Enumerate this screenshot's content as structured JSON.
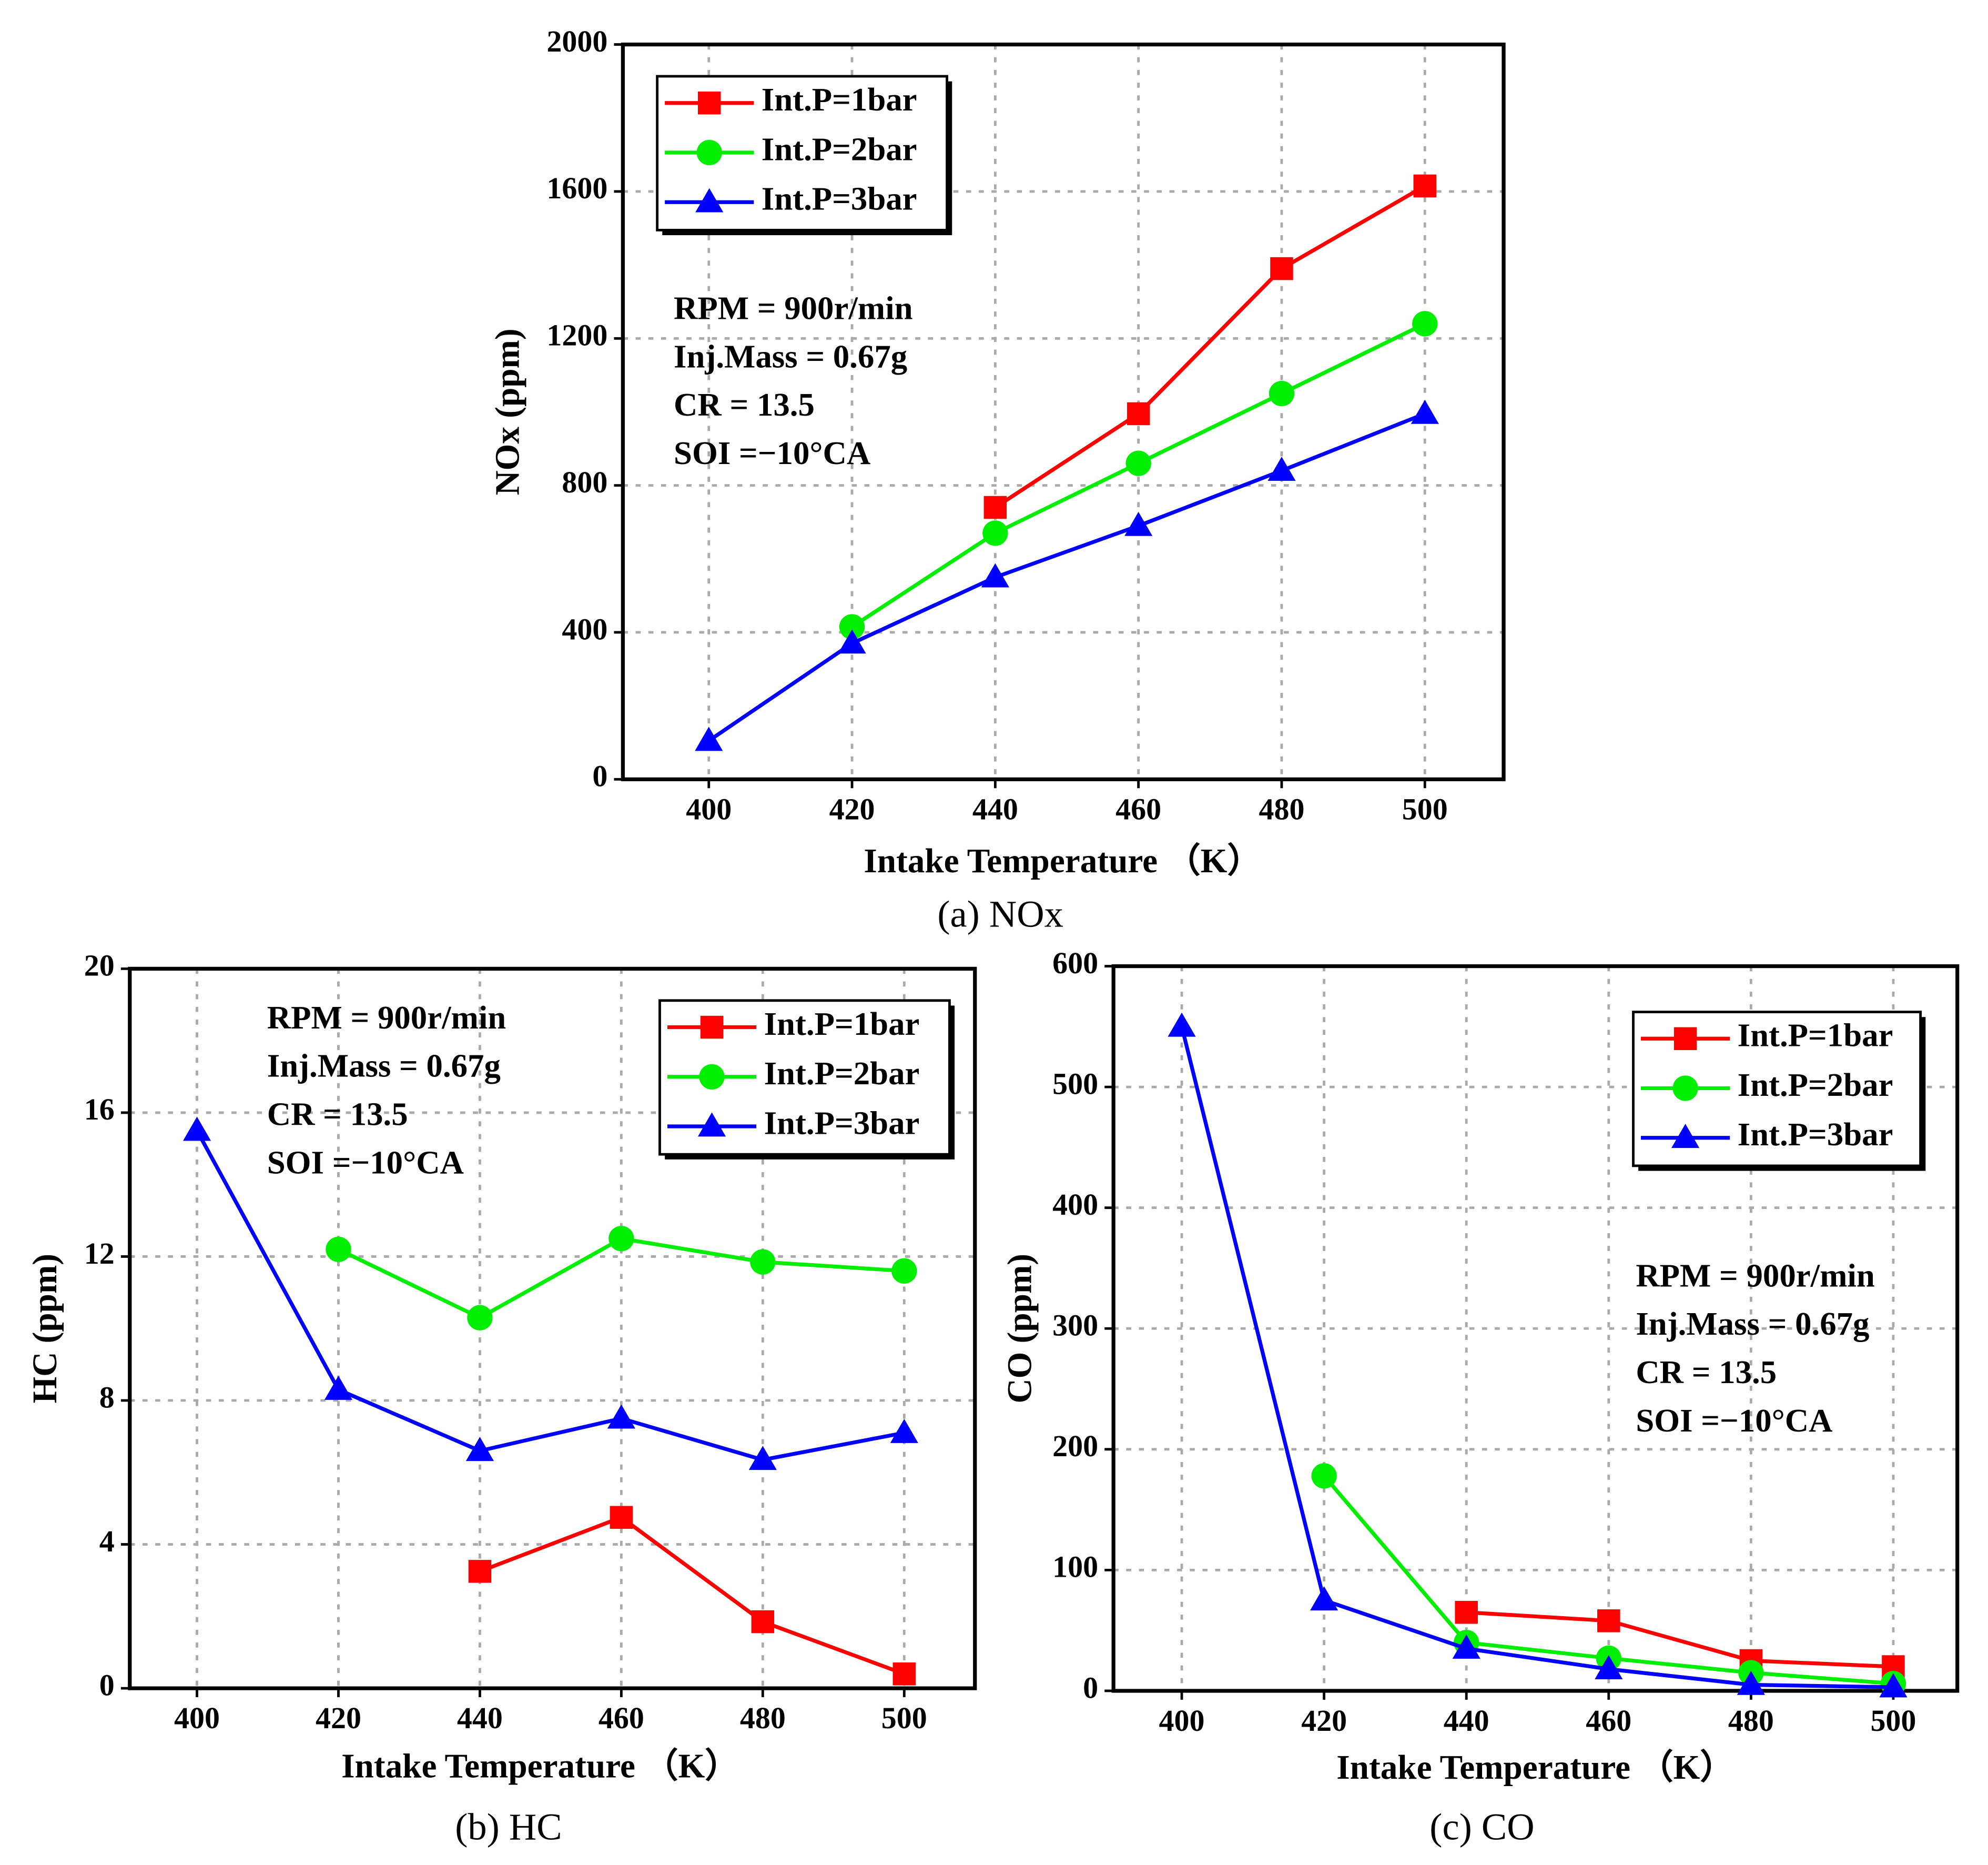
{
  "chart_data": [
    {
      "type": "line",
      "caption": "(a) NOx",
      "xlabel": "Intake Temperature （K）",
      "ylabel": "NOx (ppm)",
      "x": [
        400,
        420,
        440,
        460,
        480,
        500
      ],
      "xlim": [
        388,
        511
      ],
      "xticks": [
        400,
        420,
        440,
        460,
        480,
        500
      ],
      "ylim": [
        0,
        2000
      ],
      "yticks": [
        0,
        400,
        800,
        1200,
        1600,
        2000
      ],
      "grid": true,
      "legend": "upper left",
      "annotations": [
        "RPM = 900r/min",
        "Inj.Mass = 0.67g",
        "CR = 13.5",
        "SOI =−10°CA"
      ],
      "series": [
        {
          "name": "Int.P=1bar",
          "color": "#ff0000",
          "marker": "square",
          "values": [
            null,
            null,
            740,
            995,
            1390,
            1615
          ]
        },
        {
          "name": "Int.P=2bar",
          "color": "#00ee00",
          "marker": "circle",
          "values": [
            null,
            415,
            670,
            860,
            1050,
            1240
          ]
        },
        {
          "name": "Int.P=3bar",
          "color": "#0000ff",
          "marker": "triangle",
          "values": [
            105,
            370,
            550,
            690,
            840,
            995
          ]
        }
      ]
    },
    {
      "type": "line",
      "caption": "(b) HC",
      "xlabel": "Intake Temperature （K）",
      "ylabel": "HC (ppm)",
      "x": [
        400,
        420,
        440,
        460,
        480,
        500
      ],
      "xlim": [
        390.5,
        510
      ],
      "xticks": [
        400,
        420,
        440,
        460,
        480,
        500
      ],
      "ylim": [
        0,
        20
      ],
      "yticks": [
        0,
        4,
        8,
        12,
        16,
        20
      ],
      "grid": true,
      "legend": "upper right",
      "annotations": [
        "RPM = 900r/min",
        "Inj.Mass = 0.67g",
        "CR = 13.5",
        "SOI =−10°CA"
      ],
      "series": [
        {
          "name": "Int.P=1bar",
          "color": "#ff0000",
          "marker": "square",
          "values": [
            null,
            null,
            3.25,
            4.75,
            1.85,
            0.4
          ]
        },
        {
          "name": "Int.P=2bar",
          "color": "#00ee00",
          "marker": "circle",
          "values": [
            null,
            12.2,
            10.3,
            12.5,
            11.85,
            11.6
          ]
        },
        {
          "name": "Int.P=3bar",
          "color": "#0000ff",
          "marker": "triangle",
          "values": [
            15.5,
            8.3,
            6.6,
            7.5,
            6.35,
            7.1
          ]
        }
      ]
    },
    {
      "type": "line",
      "caption": "(c) CO",
      "xlabel": "Intake Temperature （K）",
      "ylabel": "CO (ppm)",
      "x": [
        400,
        420,
        440,
        460,
        480,
        500
      ],
      "xlim": [
        390.4,
        509
      ],
      "xticks": [
        400,
        420,
        440,
        460,
        480,
        500
      ],
      "ylim": [
        0,
        600
      ],
      "yticks": [
        0,
        100,
        200,
        300,
        400,
        500,
        600
      ],
      "grid": true,
      "legend": "upper right",
      "annotations": [
        "RPM = 900r/min",
        "Inj.Mass = 0.67g",
        "CR = 13.5",
        "SOI =−10°CA"
      ],
      "series": [
        {
          "name": "Int.P=1bar",
          "color": "#ff0000",
          "marker": "square",
          "values": [
            null,
            null,
            65,
            58,
            25,
            20
          ]
        },
        {
          "name": "Int.P=2bar",
          "color": "#00ee00",
          "marker": "circle",
          "values": [
            null,
            178,
            40,
            27,
            15,
            6
          ]
        },
        {
          "name": "Int.P=3bar",
          "color": "#0000ff",
          "marker": "triangle",
          "values": [
            550,
            75,
            35,
            18,
            5,
            3
          ]
        }
      ]
    }
  ]
}
